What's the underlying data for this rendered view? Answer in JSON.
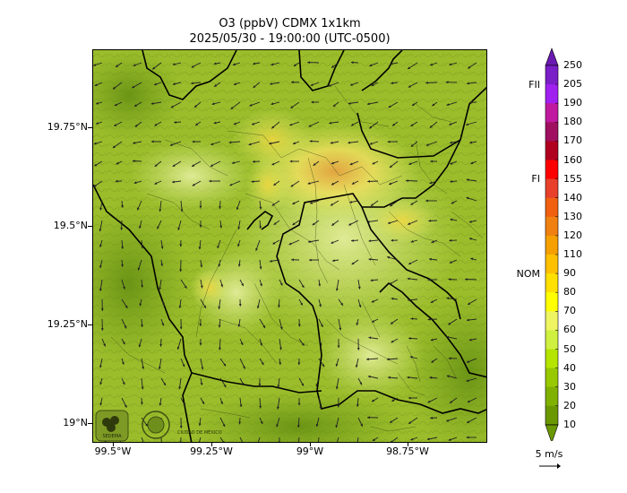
{
  "map": {
    "title_line1": "O3 (ppbV) CDMX 1x1km",
    "title_line2": "2025/05/30 - 19:00:00 (UTC-0500)",
    "y_ticks": [
      "19.75°N",
      "19.5°N",
      "19.25°N",
      "19°N"
    ],
    "x_ticks": [
      "99.5°W",
      "99.25°W",
      "99°W",
      "98.75°W"
    ],
    "lat_range": [
      18.95,
      19.95
    ],
    "lon_range": [
      -99.59,
      -98.59
    ],
    "base_color": "#9bbd2b"
  },
  "colorbar": {
    "levels": [
      "250",
      "205",
      "190",
      "180",
      "170",
      "160",
      "155",
      "140",
      "130",
      "120",
      "110",
      "90",
      "80",
      "70",
      "60",
      "50",
      "40",
      "30",
      "20",
      "10"
    ],
    "colors": [
      "#7a1ec8",
      "#a020f0",
      "#c01aa0",
      "#a01060",
      "#b00020",
      "#ff0000",
      "#e8402a",
      "#f06010",
      "#f08010",
      "#f5a000",
      "#ffc000",
      "#ffe000",
      "#ffff00",
      "#eef560",
      "#d0f040",
      "#b4e400",
      "#98c800",
      "#80b000",
      "#6a9800"
    ],
    "extend_top_color": "#6a1ab0",
    "extend_bottom_color": "#6a9800",
    "category_labels": [
      "FII",
      "FI",
      "NOM"
    ]
  },
  "wind": {
    "reference_label": "5 m/s"
  },
  "logos": {
    "sedema_text": "SEDEMA",
    "cdmx_text": "CIUDAD DE MÉXICO"
  }
}
